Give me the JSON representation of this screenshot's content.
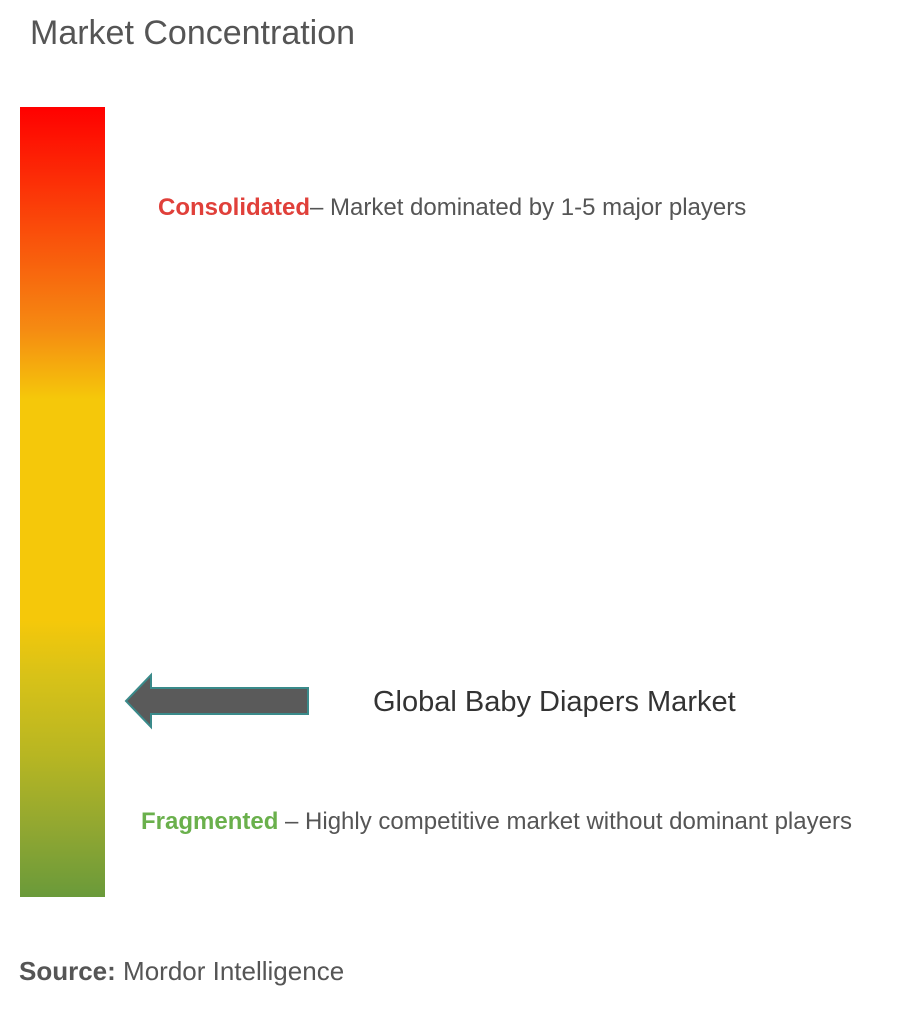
{
  "title": "Market Concentration",
  "scale": {
    "top_color": "#ff0000",
    "bottom_color": "#6a9a3a"
  },
  "consolidated": {
    "label": "Consolidated",
    "description": "– Market dominated by 1-5 major players",
    "color": "#e0403a"
  },
  "fragmented": {
    "label": "Fragmented",
    "description": " – Highly competitive market without dominant players",
    "color": "#6ab04c"
  },
  "marker": {
    "label": "Global Baby Diapers Market",
    "arrow_color": "#5a5a5a",
    "arrow_outline": "#3a8a8a"
  },
  "source": {
    "label": "Source:",
    "value": " Mordor Intelligence"
  }
}
